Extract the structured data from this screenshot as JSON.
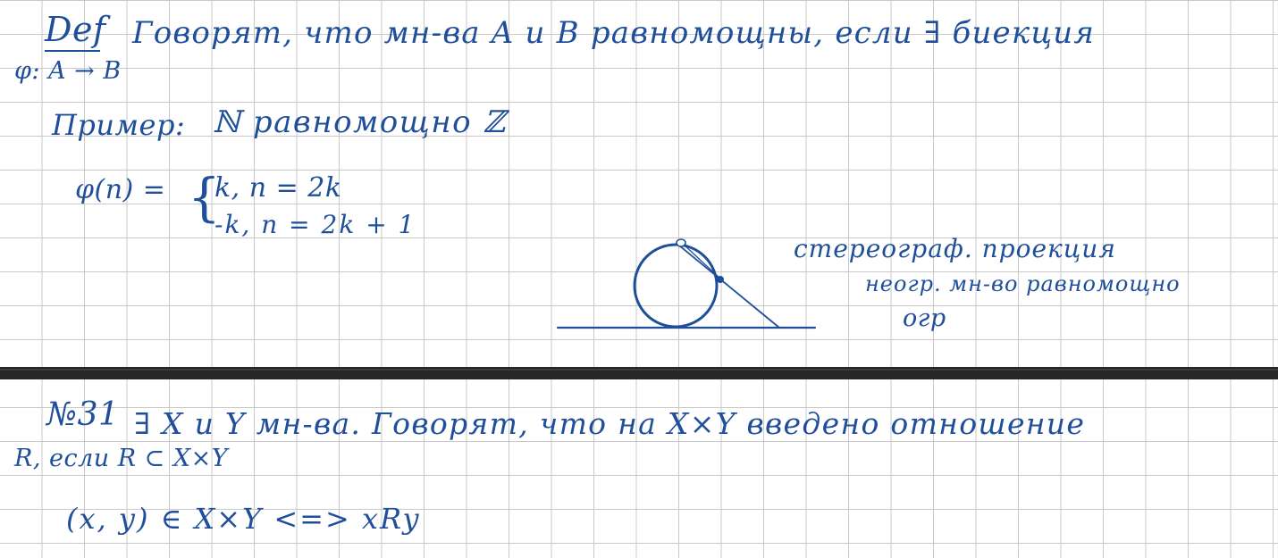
{
  "colors": {
    "ink": "#1f4f9a",
    "grid": "#c9c9c9",
    "divider": "#262626",
    "paper": "#ffffff"
  },
  "upper_page": {
    "definition": {
      "def_label": "Def",
      "line1": "Говорят, что мн-ва A и B равномощны, если ∃ биекция",
      "line2": "φ: A → B"
    },
    "example": {
      "label": "Пример:",
      "statement": "ℕ равномощно ℤ",
      "lhs": "φ(n) =",
      "case1": "k, n = 2k",
      "case2": "-k, n = 2k + 1"
    },
    "projection_notes": {
      "line1": "стереограф. проекция",
      "line2": "неогр. мн-во равномощно",
      "line3": "огр"
    }
  },
  "lower_page": {
    "number": "№31",
    "line1": "∃ X и Y мн-ва. Говорят, что на X×Y введено отношение",
    "line2": "R, если R ⊂ X×Y",
    "line3": "(x, y) ∈ X×Y <=> xRy"
  }
}
